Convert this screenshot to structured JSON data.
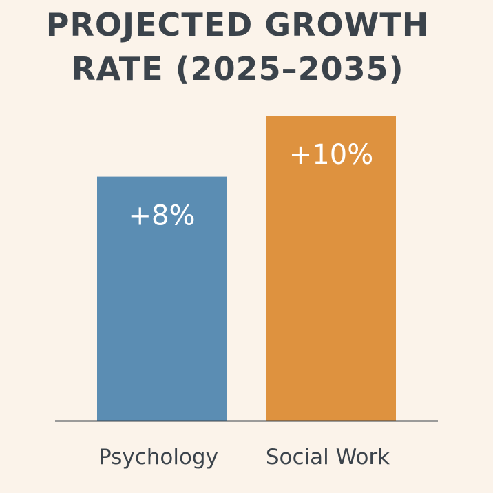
{
  "chart_data": {
    "type": "bar",
    "title_lines": [
      "PROJECTED GROWTH",
      "RATE (2025–2035)"
    ],
    "categories": [
      "Psychology",
      "Social Work"
    ],
    "values": [
      8,
      10
    ],
    "value_labels": [
      "+8%",
      "+10%"
    ],
    "unit": "%",
    "ylim": [
      0,
      10
    ],
    "grid": false,
    "legend": "none",
    "colors": [
      "#5b8db3",
      "#de923f"
    ],
    "axis_color": "#3b434b",
    "text_color": "#3b434b",
    "background": "#fbf3ea"
  }
}
